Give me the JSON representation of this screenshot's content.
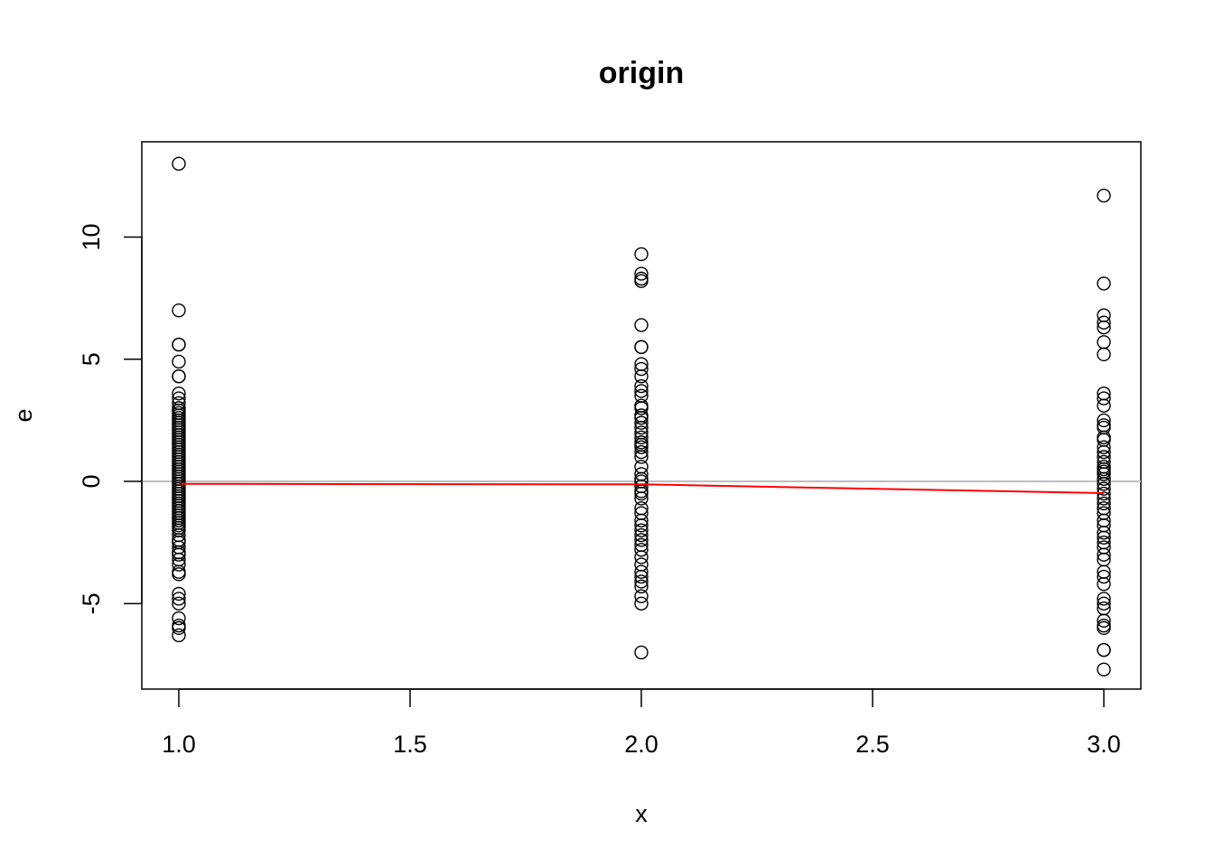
{
  "chart_data": {
    "type": "scatter",
    "title": "origin",
    "xlabel": "x",
    "ylabel": "e",
    "xlim": [
      0.92,
      3.08
    ],
    "ylim": [
      -8.5,
      13.9
    ],
    "xticks": [
      1.0,
      1.5,
      2.0,
      2.5,
      3.0
    ],
    "xtick_labels": [
      "1.0",
      "1.5",
      "2.0",
      "2.5",
      "3.0"
    ],
    "yticks": [
      -5,
      0,
      5,
      10
    ],
    "ytick_labels": [
      "-5",
      "0",
      "5",
      "10"
    ],
    "reference_line": {
      "y": 0,
      "color": "#bebebe"
    },
    "trend_line": {
      "x": [
        1,
        2,
        3
      ],
      "y": [
        -0.1,
        -0.12,
        -0.48
      ],
      "color": "#ff0000"
    },
    "points": {
      "x1": [
        13.0,
        7.0,
        5.6,
        5.6,
        4.9,
        4.3,
        4.3,
        3.6,
        3.4,
        3.2,
        3.0,
        2.9,
        2.8,
        2.7,
        2.6,
        2.5,
        2.4,
        2.3,
        2.2,
        2.1,
        2.0,
        1.9,
        1.8,
        1.7,
        1.6,
        1.5,
        1.4,
        1.3,
        1.2,
        1.1,
        1.0,
        0.9,
        0.8,
        0.7,
        0.6,
        0.5,
        0.4,
        0.3,
        0.2,
        0.1,
        0.0,
        -0.1,
        -0.2,
        -0.3,
        -0.4,
        -0.5,
        -0.6,
        -0.7,
        -0.8,
        -0.9,
        -1.0,
        -1.1,
        -1.2,
        -1.3,
        -1.4,
        -1.5,
        -1.6,
        -1.7,
        -1.8,
        -1.9,
        -2.0,
        -2.2,
        -2.4,
        -2.5,
        -2.7,
        -2.9,
        -3.0,
        -3.2,
        -3.4,
        -3.7,
        -3.8,
        -4.6,
        -4.8,
        -5.0,
        -5.6,
        -5.9,
        -6.0,
        -6.3
      ],
      "x2": [
        9.3,
        8.5,
        8.3,
        8.2,
        6.4,
        5.5,
        5.5,
        4.8,
        4.6,
        4.3,
        3.9,
        3.7,
        3.5,
        3.1,
        3.0,
        2.7,
        2.6,
        2.4,
        2.2,
        2.0,
        1.8,
        1.6,
        1.5,
        1.4,
        1.2,
        1.0,
        0.6,
        0.3,
        0.1,
        0.0,
        -0.2,
        -0.4,
        -0.5,
        -0.7,
        -1.1,
        -1.3,
        -1.6,
        -1.8,
        -2.0,
        -2.2,
        -2.4,
        -2.6,
        -2.8,
        -3.1,
        -3.4,
        -3.7,
        -3.9,
        -4.1,
        -4.3,
        -4.7,
        -5.0,
        -7.0
      ],
      "x3": [
        11.7,
        8.1,
        6.8,
        6.5,
        6.3,
        5.7,
        5.2,
        3.6,
        3.4,
        3.1,
        2.5,
        2.3,
        2.2,
        1.8,
        1.7,
        1.4,
        1.2,
        1.0,
        0.8,
        0.6,
        0.5,
        0.4,
        0.3,
        0.1,
        -0.1,
        -0.3,
        -0.5,
        -0.7,
        -0.9,
        -1.1,
        -1.3,
        -1.6,
        -1.8,
        -2.1,
        -2.3,
        -2.5,
        -2.7,
        -3.0,
        -3.2,
        -3.7,
        -3.9,
        -4.2,
        -4.8,
        -5.0,
        -5.2,
        -5.7,
        -5.9,
        -6.0,
        -6.9,
        -6.9,
        -7.7
      ]
    }
  }
}
